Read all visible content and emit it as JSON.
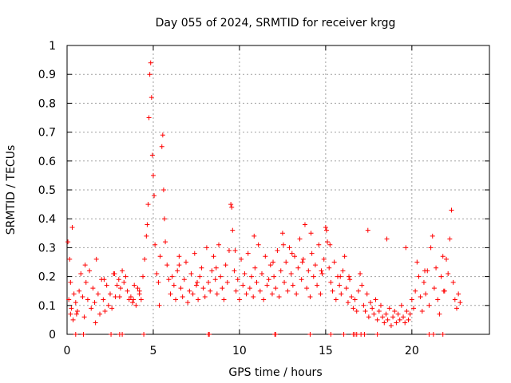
{
  "chart_data": {
    "type": "scatter",
    "title": "Day 055 of 2024, SRMTID for receiver krgg",
    "xlabel": "GPS time / hours",
    "ylabel": "SRMTID / TECUs",
    "xlim": [
      0,
      24.5
    ],
    "ylim": [
      0,
      1
    ],
    "x_ticks": [
      0,
      5,
      10,
      15,
      20
    ],
    "x_tick_labels": [
      "0",
      "5",
      "10",
      "15",
      "20"
    ],
    "y_ticks": [
      0,
      0.1,
      0.2,
      0.3,
      0.4,
      0.5,
      0.6,
      0.7,
      0.8,
      0.9,
      1
    ],
    "y_tick_labels": [
      "0",
      "0.1",
      "0.2",
      "0.3",
      "0.4",
      "0.5",
      "0.6",
      "0.7",
      "0.8",
      "0.9",
      "1"
    ],
    "grid": true,
    "marker": "+",
    "color": "#ff0000",
    "series": [
      {
        "name": "SRMTID",
        "x": [
          0.05,
          0.1,
          0.15,
          0.2,
          0.25,
          0.3,
          0.35,
          0.4,
          0.5,
          0.6,
          0.7,
          0.8,
          0.9,
          1.0,
          1.1,
          1.2,
          1.3,
          1.4,
          1.5,
          1.6,
          1.7,
          1.8,
          1.9,
          2.0,
          2.1,
          2.2,
          2.3,
          2.4,
          2.5,
          2.6,
          2.7,
          2.8,
          2.9,
          3.0,
          3.1,
          3.2,
          3.3,
          3.4,
          3.5,
          3.6,
          3.7,
          3.8,
          3.9,
          4.0,
          4.1,
          4.2,
          4.3,
          4.4,
          4.5,
          4.6,
          4.65,
          4.7,
          4.75,
          4.8,
          4.85,
          4.9,
          4.95,
          5.0,
          5.05,
          5.1,
          5.2,
          5.3,
          5.4,
          5.5,
          5.55,
          5.6,
          5.65,
          5.7,
          5.8,
          5.9,
          6.0,
          6.1,
          6.2,
          6.3,
          6.4,
          6.5,
          6.6,
          6.7,
          6.8,
          6.9,
          7.0,
          7.1,
          7.2,
          7.3,
          7.4,
          7.5,
          7.6,
          7.7,
          7.8,
          7.9,
          8.0,
          8.1,
          8.2,
          8.3,
          8.4,
          8.5,
          8.6,
          8.7,
          8.8,
          8.9,
          9.0,
          9.1,
          9.2,
          9.3,
          9.4,
          9.5,
          9.55,
          9.6,
          9.7,
          9.8,
          9.9,
          10.0,
          10.1,
          10.2,
          10.3,
          10.4,
          10.5,
          10.6,
          10.7,
          10.8,
          10.9,
          11.0,
          11.1,
          11.2,
          11.3,
          11.4,
          11.5,
          11.6,
          11.7,
          11.8,
          11.9,
          12.0,
          12.1,
          12.2,
          12.3,
          12.4,
          12.5,
          12.6,
          12.7,
          12.8,
          12.9,
          13.0,
          13.1,
          13.2,
          13.3,
          13.4,
          13.5,
          13.6,
          13.7,
          13.8,
          13.9,
          14.0,
          14.1,
          14.2,
          14.3,
          14.4,
          14.5,
          14.6,
          14.7,
          14.8,
          14.9,
          15.0,
          15.05,
          15.1,
          15.2,
          15.3,
          15.4,
          15.5,
          15.6,
          15.7,
          15.8,
          15.9,
          16.0,
          16.1,
          16.2,
          16.3,
          16.4,
          16.5,
          16.6,
          16.7,
          16.8,
          16.9,
          17.0,
          17.1,
          17.2,
          17.3,
          17.4,
          17.5,
          17.6,
          17.7,
          17.8,
          17.9,
          18.0,
          18.1,
          18.2,
          18.3,
          18.4,
          18.5,
          18.6,
          18.7,
          18.8,
          18.9,
          19.0,
          19.1,
          19.2,
          19.3,
          19.4,
          19.5,
          19.6,
          19.7,
          19.8,
          19.9,
          20.0,
          20.1,
          20.2,
          20.3,
          20.4,
          20.5,
          20.6,
          20.7,
          20.8,
          20.9,
          21.0,
          21.1,
          21.2,
          21.3,
          21.4,
          21.5,
          21.6,
          21.7,
          21.8,
          21.9,
          22.0,
          22.1,
          22.2,
          22.3,
          22.4,
          22.5,
          22.6,
          22.7,
          22.8,
          0.2,
          1.05,
          2.15,
          3.05,
          4.2,
          5.35,
          6.5,
          7.55,
          8.65,
          9.75,
          10.85,
          11.95,
          13.05,
          14.15,
          15.25,
          16.35,
          17.45,
          18.55,
          19.65,
          20.75,
          21.85,
          0.55,
          1.65,
          2.75,
          3.85,
          12.55,
          13.65,
          14.75,
          15.85,
          0.5,
          0.95,
          2.55,
          3.05,
          3.2,
          4.45,
          8.2,
          8.25,
          12.05,
          12.1,
          14.1,
          15.3,
          16.05,
          16.6,
          16.7,
          16.8,
          17.05,
          17.25,
          18.0,
          21.0,
          21.25,
          21.8
        ],
        "values": [
          0.32,
          0.12,
          0.26,
          0.18,
          0.09,
          0.37,
          0.05,
          0.14,
          0.11,
          0.08,
          0.15,
          0.21,
          0.13,
          0.06,
          0.18,
          0.12,
          0.22,
          0.09,
          0.16,
          0.11,
          0.26,
          0.14,
          0.07,
          0.19,
          0.12,
          0.08,
          0.17,
          0.1,
          0.14,
          0.09,
          0.21,
          0.13,
          0.17,
          0.19,
          0.16,
          0.22,
          0.18,
          0.2,
          0.15,
          0.12,
          0.13,
          0.11,
          0.17,
          0.1,
          0.16,
          0.14,
          0.12,
          0.2,
          0.26,
          0.34,
          0.38,
          0.45,
          0.75,
          0.9,
          0.94,
          0.82,
          0.62,
          0.55,
          0.48,
          0.31,
          0.21,
          0.18,
          0.27,
          0.65,
          0.69,
          0.5,
          0.4,
          0.32,
          0.24,
          0.19,
          0.14,
          0.2,
          0.17,
          0.12,
          0.22,
          0.27,
          0.16,
          0.13,
          0.19,
          0.25,
          0.11,
          0.15,
          0.21,
          0.14,
          0.28,
          0.17,
          0.12,
          0.2,
          0.23,
          0.16,
          0.13,
          0.3,
          0.18,
          0.15,
          0.22,
          0.27,
          0.19,
          0.14,
          0.31,
          0.2,
          0.16,
          0.12,
          0.24,
          0.18,
          0.29,
          0.45,
          0.44,
          0.36,
          0.22,
          0.15,
          0.19,
          0.12,
          0.26,
          0.17,
          0.21,
          0.14,
          0.28,
          0.16,
          0.2,
          0.13,
          0.23,
          0.18,
          0.31,
          0.15,
          0.21,
          0.12,
          0.27,
          0.17,
          0.19,
          0.24,
          0.14,
          0.2,
          0.16,
          0.29,
          0.13,
          0.22,
          0.35,
          0.18,
          0.25,
          0.15,
          0.3,
          0.21,
          0.17,
          0.27,
          0.14,
          0.23,
          0.33,
          0.19,
          0.26,
          0.38,
          0.16,
          0.22,
          0.13,
          0.28,
          0.2,
          0.24,
          0.17,
          0.31,
          0.14,
          0.21,
          0.26,
          0.37,
          0.36,
          0.32,
          0.23,
          0.18,
          0.15,
          0.25,
          0.12,
          0.2,
          0.17,
          0.14,
          0.22,
          0.27,
          0.16,
          0.11,
          0.19,
          0.13,
          0.09,
          0.12,
          0.08,
          0.15,
          0.21,
          0.17,
          0.1,
          0.08,
          0.14,
          0.06,
          0.11,
          0.09,
          0.07,
          0.12,
          0.05,
          0.08,
          0.1,
          0.06,
          0.04,
          0.07,
          0.05,
          0.09,
          0.03,
          0.06,
          0.08,
          0.04,
          0.07,
          0.05,
          0.1,
          0.06,
          0.04,
          0.08,
          0.05,
          0.07,
          0.12,
          0.09,
          0.15,
          0.25,
          0.2,
          0.13,
          0.08,
          0.18,
          0.14,
          0.22,
          0.1,
          0.3,
          0.34,
          0.16,
          0.23,
          0.12,
          0.07,
          0.2,
          0.27,
          0.15,
          0.26,
          0.21,
          0.33,
          0.43,
          0.18,
          0.12,
          0.09,
          0.14,
          0.11,
          0.07,
          0.24,
          0.19,
          0.13,
          0.15,
          0.1,
          0.24,
          0.18,
          0.23,
          0.29,
          0.34,
          0.25,
          0.28,
          0.35,
          0.31,
          0.2,
          0.36,
          0.33,
          0.3,
          0.22,
          0.15,
          0.07,
          0.04,
          0.21,
          0.12,
          0.31,
          0.25,
          0.22,
          0.2,
          0,
          0,
          0,
          0,
          0,
          0,
          0,
          0,
          0,
          0,
          0,
          0,
          0,
          0,
          0,
          0,
          0,
          0,
          0,
          0,
          0,
          0
        ]
      }
    ]
  }
}
